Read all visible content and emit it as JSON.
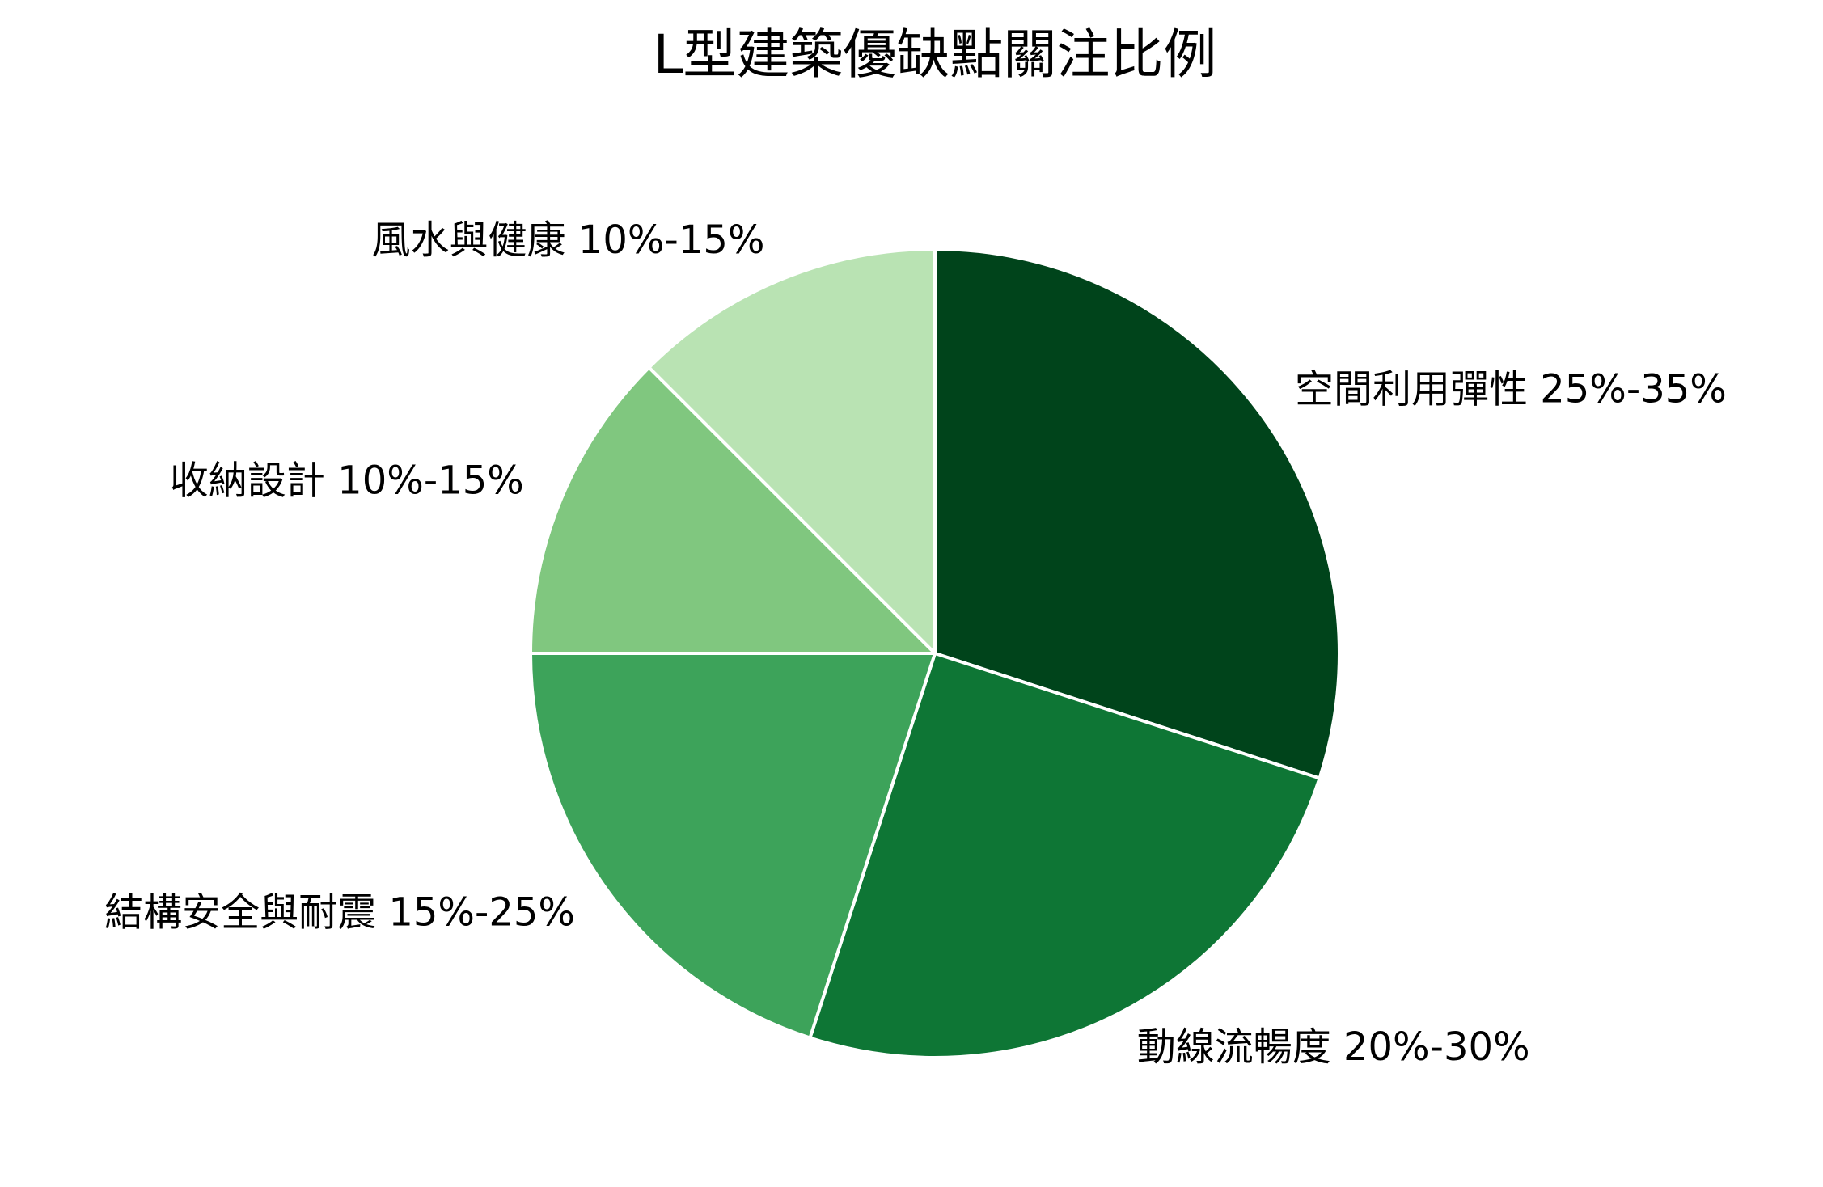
{
  "chart_data": {
    "type": "pie",
    "title": "L型建築優缺點關注比例",
    "categories": [
      "空間利用彈性 25%-35%",
      "動線流暢度 20%-30%",
      "結構安全與耐震 15%-25%",
      "收納設計 10%-15%",
      "風水與健康 10%-15%"
    ],
    "values": [
      30,
      25,
      20,
      12.5,
      12.5
    ],
    "colors": [
      "#00441b",
      "#0e7635",
      "#3da35a",
      "#80c77f",
      "#b9e3b3"
    ]
  }
}
